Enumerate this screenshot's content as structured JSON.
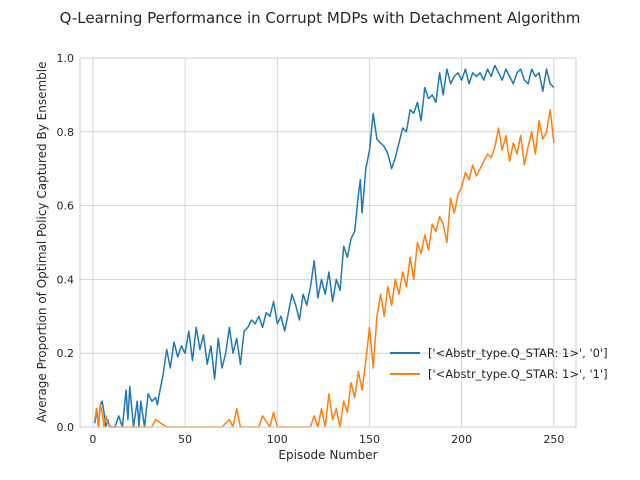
{
  "chart_data": {
    "type": "line",
    "title": "Q-Learning Performance in Corrupt MDPs with Detachment Algorithm",
    "xlabel": "Episode Number",
    "ylabel": "Average Proportion of Optimal Policy Captured By Ensemble",
    "xlim": [
      -7,
      262
    ],
    "ylim": [
      0,
      1
    ],
    "xticks": [
      0,
      50,
      100,
      150,
      200,
      250
    ],
    "yticks": [
      0.0,
      0.2,
      0.4,
      0.6,
      0.8,
      1.0
    ],
    "grid": true,
    "legend_position": "center-right",
    "series": [
      {
        "name": "['<Abstr_type.Q_STAR: 1>', '0']",
        "color": "#1f77b4",
        "x": [
          1,
          2,
          3,
          4,
          5,
          6,
          7,
          8,
          9,
          10,
          12,
          14,
          16,
          18,
          19,
          20,
          22,
          24,
          25,
          26,
          28,
          30,
          32,
          34,
          35,
          36,
          38,
          40,
          42,
          44,
          46,
          48,
          50,
          52,
          54,
          56,
          58,
          60,
          62,
          64,
          66,
          68,
          70,
          72,
          74,
          76,
          78,
          80,
          82,
          84,
          86,
          88,
          90,
          92,
          94,
          96,
          98,
          100,
          102,
          104,
          106,
          108,
          110,
          112,
          114,
          116,
          118,
          120,
          122,
          124,
          126,
          128,
          130,
          132,
          134,
          136,
          138,
          140,
          142,
          144,
          145,
          146,
          148,
          150,
          152,
          154,
          156,
          158,
          160,
          162,
          164,
          166,
          168,
          170,
          172,
          174,
          176,
          178,
          180,
          182,
          184,
          186,
          188,
          190,
          192,
          194,
          196,
          198,
          200,
          202,
          204,
          206,
          208,
          210,
          212,
          214,
          216,
          218,
          220,
          222,
          224,
          226,
          228,
          230,
          232,
          234,
          236,
          238,
          240,
          242,
          244,
          246,
          248,
          250
        ],
        "y": [
          0.01,
          0.05,
          0.0,
          0.06,
          0.07,
          0.04,
          0.0,
          0.02,
          0.0,
          0.0,
          0.0,
          0.03,
          0.0,
          0.1,
          0.02,
          0.11,
          0.0,
          0.07,
          0.0,
          0.07,
          0.0,
          0.09,
          0.07,
          0.08,
          0.06,
          0.09,
          0.14,
          0.21,
          0.16,
          0.23,
          0.19,
          0.22,
          0.2,
          0.26,
          0.18,
          0.27,
          0.21,
          0.25,
          0.17,
          0.22,
          0.13,
          0.24,
          0.16,
          0.2,
          0.27,
          0.2,
          0.24,
          0.17,
          0.26,
          0.27,
          0.29,
          0.28,
          0.3,
          0.27,
          0.31,
          0.3,
          0.34,
          0.28,
          0.3,
          0.26,
          0.31,
          0.36,
          0.33,
          0.29,
          0.36,
          0.33,
          0.38,
          0.45,
          0.35,
          0.4,
          0.36,
          0.42,
          0.34,
          0.4,
          0.37,
          0.49,
          0.46,
          0.51,
          0.53,
          0.63,
          0.67,
          0.58,
          0.7,
          0.75,
          0.85,
          0.78,
          0.77,
          0.76,
          0.74,
          0.7,
          0.73,
          0.77,
          0.81,
          0.8,
          0.86,
          0.85,
          0.88,
          0.83,
          0.92,
          0.89,
          0.9,
          0.88,
          0.96,
          0.9,
          0.97,
          0.93,
          0.95,
          0.96,
          0.94,
          0.97,
          0.93,
          0.96,
          0.95,
          0.96,
          0.94,
          0.97,
          0.95,
          0.98,
          0.96,
          0.94,
          0.97,
          0.95,
          0.93,
          0.96,
          0.97,
          0.94,
          0.93,
          0.97,
          0.95,
          0.96,
          0.91,
          0.97,
          0.93,
          0.92
        ],
        "x_more": [],
        "y_more": []
      },
      {
        "name": "['<Abstr_type.Q_STAR: 1>', '1']",
        "color": "#ff7f0e",
        "x": [
          1,
          2,
          3,
          4,
          5,
          6,
          7,
          8,
          10,
          12,
          15,
          18,
          20,
          25,
          30,
          32,
          34,
          40,
          45,
          50,
          55,
          60,
          65,
          70,
          74,
          76,
          78,
          80,
          84,
          90,
          92,
          96,
          98,
          100,
          105,
          110,
          115,
          118,
          120,
          122,
          124,
          126,
          128,
          130,
          132,
          134,
          136,
          138,
          140,
          142,
          144,
          146,
          148,
          150,
          152,
          154,
          156,
          158,
          160,
          162,
          164,
          166,
          168,
          170,
          172,
          174,
          176,
          178,
          180,
          182,
          184,
          186,
          188,
          190,
          192,
          194,
          196,
          198,
          200,
          202,
          204,
          206,
          208,
          210,
          212,
          214,
          216,
          218,
          220,
          222,
          224,
          226,
          228,
          230,
          232,
          234,
          236,
          238,
          240,
          242,
          244,
          246,
          248,
          250
        ],
        "y": [
          0.02,
          0.05,
          0.0,
          0.06,
          0.04,
          0.0,
          0.03,
          0.01,
          0.0,
          0.0,
          0.0,
          0.0,
          0.0,
          0.0,
          0.0,
          0.0,
          0.02,
          0.0,
          0.0,
          0.0,
          0.0,
          0.0,
          0.0,
          0.0,
          0.02,
          0.0,
          0.05,
          0.0,
          0.0,
          0.0,
          0.03,
          0.0,
          0.04,
          0.0,
          0.0,
          0.0,
          0.0,
          0.0,
          0.03,
          0.0,
          0.05,
          0.0,
          0.09,
          0.02,
          0.05,
          0.0,
          0.07,
          0.04,
          0.12,
          0.08,
          0.15,
          0.1,
          0.18,
          0.27,
          0.16,
          0.3,
          0.36,
          0.3,
          0.38,
          0.33,
          0.4,
          0.36,
          0.42,
          0.38,
          0.46,
          0.4,
          0.5,
          0.47,
          0.52,
          0.48,
          0.55,
          0.53,
          0.57,
          0.55,
          0.5,
          0.62,
          0.58,
          0.63,
          0.65,
          0.69,
          0.67,
          0.71,
          0.68,
          0.7,
          0.72,
          0.74,
          0.73,
          0.76,
          0.81,
          0.75,
          0.79,
          0.72,
          0.77,
          0.74,
          0.79,
          0.71,
          0.76,
          0.8,
          0.74,
          0.83,
          0.78,
          0.8,
          0.86,
          0.77
        ],
        "x_more": [],
        "y_more": []
      }
    ]
  }
}
